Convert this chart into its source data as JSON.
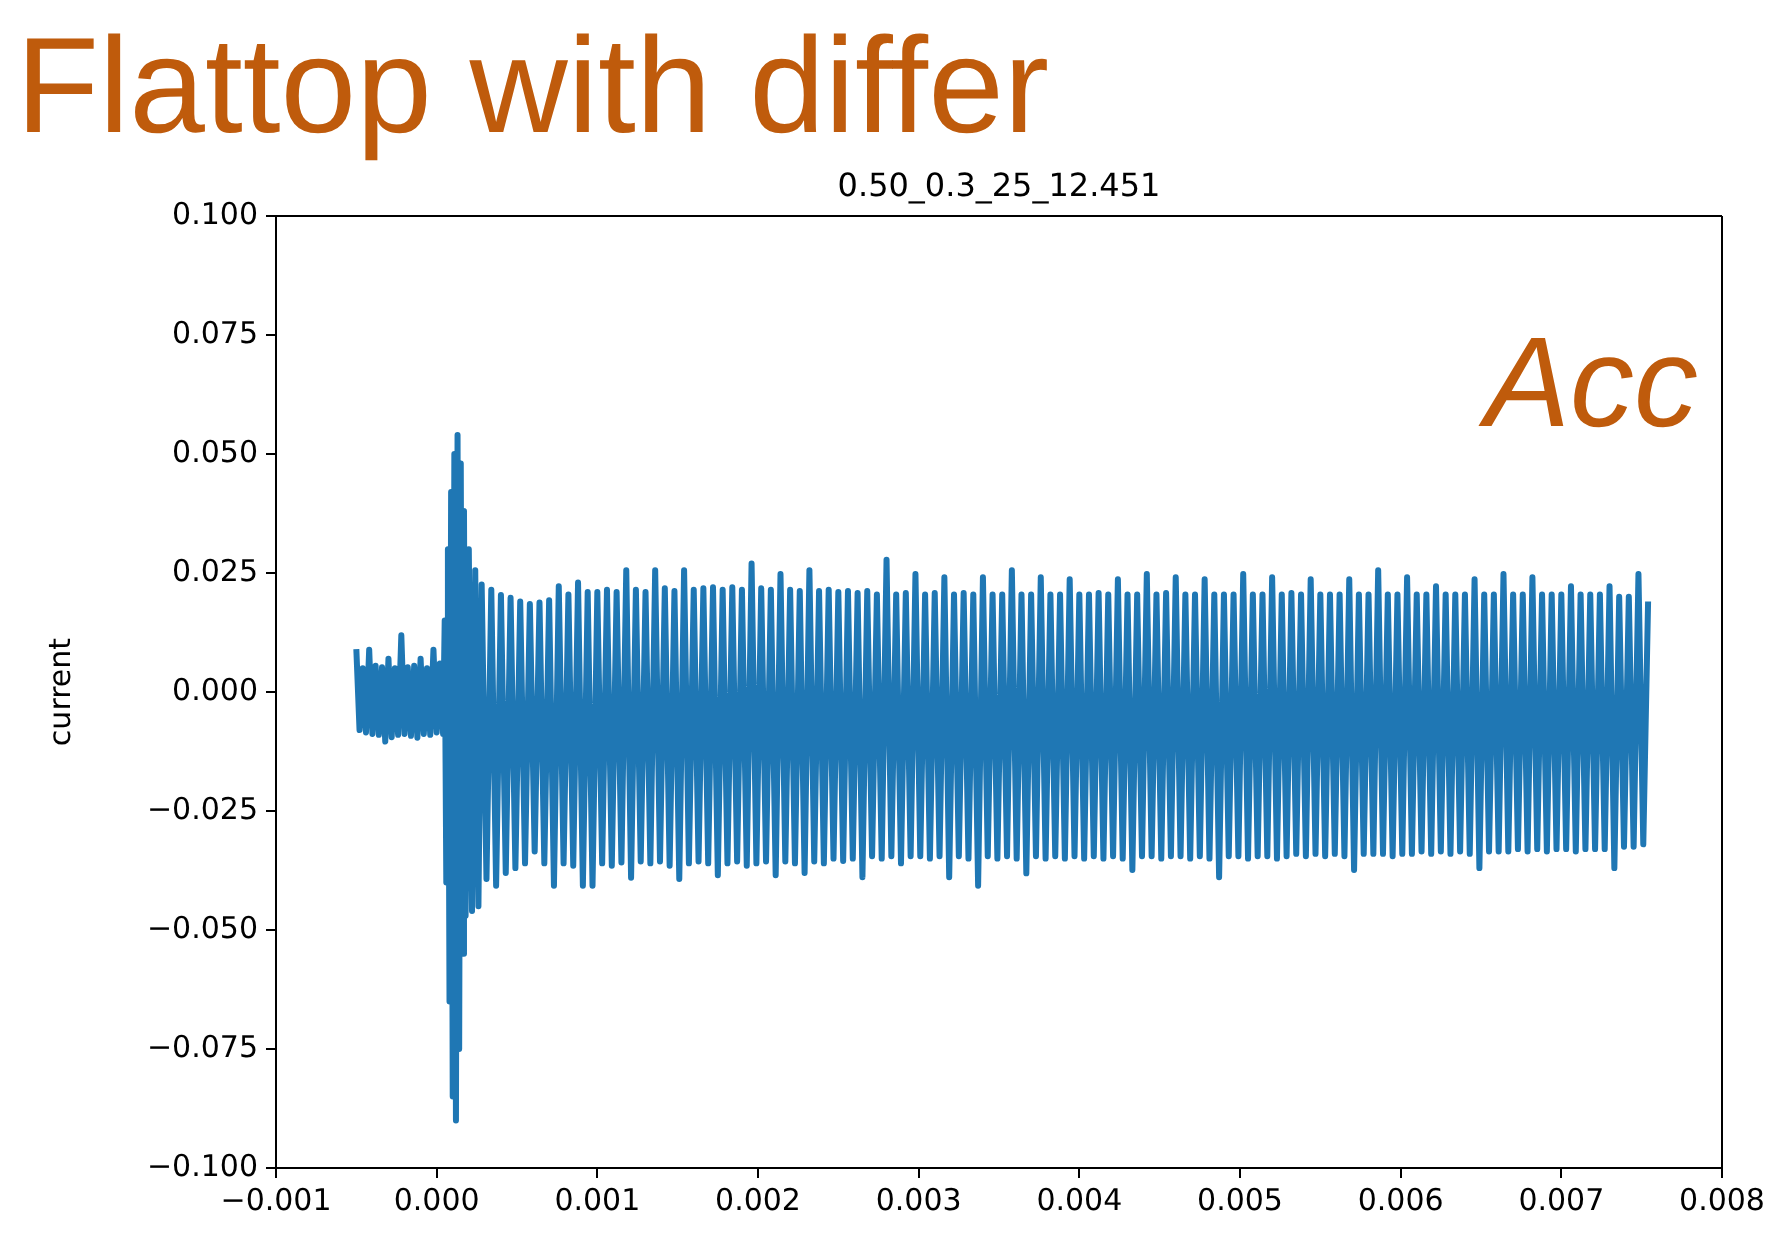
{
  "chart_data": {
    "type": "line",
    "title": "0.50_0.3_25_12.451",
    "ylabel": "current",
    "annotations": [
      "Flattop with differ",
      "Acc"
    ],
    "color": "#1f77b4",
    "xlim": [
      -0.001,
      0.008
    ],
    "xticks": [
      {
        "value": -0.001,
        "label": "−0.001"
      },
      {
        "value": 0,
        "label": "0.000"
      },
      {
        "value": 0.001,
        "label": "0.001"
      },
      {
        "value": 0.002,
        "label": "0.002"
      },
      {
        "value": 0.003,
        "label": "0.003"
      },
      {
        "value": 0.004,
        "label": "0.004"
      },
      {
        "value": 0.005,
        "label": "0.005"
      },
      {
        "value": 0.006,
        "label": "0.006"
      },
      {
        "value": 0.007,
        "label": "0.007"
      },
      {
        "value": 0.008,
        "label": "0.008"
      }
    ],
    "ylim": [
      -0.1,
      0.1
    ],
    "yticks": [
      {
        "value": -0.1,
        "label": "−0.100"
      },
      {
        "value": -0.075,
        "label": "−0.075"
      },
      {
        "value": -0.05,
        "label": "−0.050"
      },
      {
        "value": -0.025,
        "label": "−0.025"
      },
      {
        "value": 0,
        "label": "0.000"
      },
      {
        "value": 0.025,
        "label": "0.025"
      },
      {
        "value": 0.05,
        "label": "0.050"
      },
      {
        "value": 0.075,
        "label": "0.075"
      },
      {
        "value": 0.1,
        "label": "0.100"
      }
    ],
    "x": [
      -0.0005,
      -0.00048,
      -0.00046,
      -0.00044,
      -0.00042,
      -0.0004,
      -0.00038,
      -0.00036,
      -0.00034,
      -0.00032,
      -0.0003,
      -0.00028,
      -0.00026,
      -0.00024,
      -0.00022,
      -0.0002,
      -0.00018,
      -0.00016,
      -0.00014,
      -0.00012,
      -0.0001,
      -8e-05,
      -6e-05,
      -4e-05,
      -2e-05,
      0,
      2e-05,
      4e-05,
      5e-05,
      6e-05,
      7e-05,
      8e-05,
      9e-05,
      0.0001,
      0.00011,
      0.00012,
      0.00013,
      0.00014,
      0.00015,
      0.00016,
      0.00017,
      0.00018,
      0.0002,
      0.00022,
      0.00024,
      0.00026,
      0.00028,
      0.00031,
      0.00034,
      0.00037,
      0.0004,
      0.00043,
      0.00046,
      0.00049,
      0.00052,
      0.00055,
      0.00058,
      0.00061,
      0.00064,
      0.00067,
      0.0007,
      0.00073,
      0.00076,
      0.00079,
      0.00082,
      0.00085,
      0.00088,
      0.00091,
      0.00094,
      0.00097,
      0.001,
      0.00103,
      0.00106,
      0.00109,
      0.00112,
      0.00115,
      0.00118,
      0.00121,
      0.00124,
      0.00127,
      0.0013,
      0.00133,
      0.00136,
      0.00139,
      0.00142,
      0.00145,
      0.00148,
      0.00151,
      0.00154,
      0.00157,
      0.0016,
      0.00163,
      0.00166,
      0.00169,
      0.00172,
      0.00175,
      0.00178,
      0.00181,
      0.00184,
      0.00187,
      0.0019,
      0.00193,
      0.00196,
      0.00199,
      0.00202,
      0.00205,
      0.00208,
      0.00211,
      0.00214,
      0.00217,
      0.0022,
      0.00223,
      0.00226,
      0.00229,
      0.00232,
      0.00235,
      0.00238,
      0.00241,
      0.00244,
      0.00247,
      0.0025,
      0.00253,
      0.00256,
      0.00259,
      0.00262,
      0.00265,
      0.00268,
      0.00271,
      0.00274,
      0.00277,
      0.0028,
      0.00283,
      0.00286,
      0.00289,
      0.00292,
      0.00295,
      0.00298,
      0.00301,
      0.00304,
      0.00307,
      0.0031,
      0.00313,
      0.00316,
      0.00319,
      0.00322,
      0.00325,
      0.00328,
      0.00331,
      0.00334,
      0.00337,
      0.0034,
      0.00343,
      0.00346,
      0.00349,
      0.00352,
      0.00355,
      0.00358,
      0.00361,
      0.00364,
      0.00367,
      0.0037,
      0.00373,
      0.00376,
      0.00379,
      0.00382,
      0.00385,
      0.00388,
      0.00391,
      0.00394,
      0.00397,
      0.004,
      0.00403,
      0.00406,
      0.00409,
      0.00412,
      0.00415,
      0.00418,
      0.00421,
      0.00424,
      0.00427,
      0.0043,
      0.00433,
      0.00436,
      0.00439,
      0.00442,
      0.00445,
      0.00448,
      0.00451,
      0.00454,
      0.00457,
      0.0046,
      0.00463,
      0.00466,
      0.00469,
      0.00472,
      0.00475,
      0.00478,
      0.00481,
      0.00484,
      0.00487,
      0.0049,
      0.00493,
      0.00496,
      0.00499,
      0.00502,
      0.00505,
      0.00508,
      0.00511,
      0.00514,
      0.00517,
      0.0052,
      0.00523,
      0.00526,
      0.00529,
      0.00532,
      0.00535,
      0.00538,
      0.00541,
      0.00544,
      0.00547,
      0.0055,
      0.00553,
      0.00556,
      0.00559,
      0.00562,
      0.00565,
      0.00568,
      0.00571,
      0.00574,
      0.00577,
      0.0058,
      0.00583,
      0.00586,
      0.00589,
      0.00592,
      0.00595,
      0.00598,
      0.00601,
      0.00604,
      0.00607,
      0.0061,
      0.00613,
      0.00616,
      0.00619,
      0.00622,
      0.00625,
      0.00628,
      0.00631,
      0.00634,
      0.00637,
      0.0064,
      0.00643,
      0.00646,
      0.00649,
      0.00652,
      0.00655,
      0.00658,
      0.00661,
      0.00664,
      0.00667,
      0.0067,
      0.00673,
      0.00676,
      0.00679,
      0.00682,
      0.00685,
      0.00688,
      0.00691,
      0.00694,
      0.00697,
      0.007,
      0.00703,
      0.00706,
      0.00709,
      0.00712,
      0.00715,
      0.00718,
      0.00721,
      0.00724,
      0.00727,
      0.0073,
      0.00733,
      0.00736,
      0.00739,
      0.00742,
      0.00745,
      0.00748,
      0.00751,
      0.00754
    ],
    "values": [
      0.009,
      -0.008,
      0.005,
      -0.0085,
      0.0089,
      -0.0088,
      0.0055,
      -0.009,
      0.0052,
      -0.0104,
      0.007,
      -0.0095,
      0.005,
      -0.009,
      0.0119,
      -0.0088,
      0.0052,
      -0.0092,
      0.0055,
      -0.0096,
      0.007,
      -0.0088,
      0.005,
      -0.009,
      0.0089,
      -0.0085,
      0.006,
      -0.0088,
      0.015,
      -0.04,
      0.03,
      -0.065,
      0.042,
      -0.085,
      0.05,
      -0.09,
      0.054,
      -0.075,
      0.048,
      -0.055,
      0.038,
      -0.047,
      0.03,
      -0.046,
      0.0256,
      -0.045,
      0.0226,
      -0.0393,
      0.0215,
      -0.0407,
      0.0204,
      -0.038,
      0.0198,
      -0.037,
      0.019,
      -0.036,
      0.0185,
      -0.0335,
      0.0188,
      -0.036,
      0.0193,
      -0.0407,
      0.0222,
      -0.036,
      0.0205,
      -0.0365,
      0.023,
      -0.0407,
      0.021,
      -0.0407,
      0.021,
      -0.036,
      0.0215,
      -0.0365,
      0.021,
      -0.0358,
      0.0256,
      -0.039,
      0.0215,
      -0.0356,
      0.021,
      -0.036,
      0.0256,
      -0.0356,
      0.0218,
      -0.0365,
      0.0212,
      -0.0393,
      0.0256,
      -0.036,
      0.0215,
      -0.0356,
      0.0218,
      -0.036,
      0.022,
      -0.0385,
      0.0215,
      -0.036,
      0.022,
      -0.0356,
      0.0215,
      -0.0365,
      0.027,
      -0.036,
      0.0218,
      -0.0356,
      0.0215,
      -0.0385,
      0.0248,
      -0.0356,
      0.0215,
      -0.036,
      0.0212,
      -0.038,
      0.0256,
      -0.0356,
      0.0212,
      -0.036,
      0.0215,
      -0.035,
      0.021,
      -0.0355,
      0.0212,
      -0.035,
      0.0208,
      -0.0389,
      0.0212,
      -0.0345,
      0.0205,
      -0.035,
      0.0278,
      -0.0345,
      0.0205,
      -0.036,
      0.0208,
      -0.0345,
      0.0248,
      -0.0345,
      0.0205,
      -0.035,
      0.0208,
      -0.0345,
      0.0241,
      -0.0389,
      0.0205,
      -0.0345,
      0.0208,
      -0.035,
      0.0205,
      -0.0407,
      0.0241,
      -0.0345,
      0.0205,
      -0.035,
      0.0205,
      -0.0345,
      0.0256,
      -0.035,
      0.0205,
      -0.0381,
      0.0205,
      -0.0345,
      0.0241,
      -0.035,
      0.0205,
      -0.0345,
      0.0205,
      -0.035,
      0.0237,
      -0.0345,
      0.0205,
      -0.035,
      0.0205,
      -0.0345,
      0.0208,
      -0.035,
      0.0205,
      -0.0345,
      0.0237,
      -0.035,
      0.0205,
      -0.0374,
      0.0205,
      -0.0345,
      0.0248,
      -0.0345,
      0.0205,
      -0.035,
      0.0208,
      -0.0345,
      0.0241,
      -0.0345,
      0.0205,
      -0.035,
      0.0205,
      -0.0345,
      0.0237,
      -0.035,
      0.0205,
      -0.0389,
      0.0205,
      -0.0345,
      0.0205,
      -0.0345,
      0.0248,
      -0.035,
      0.0205,
      -0.0345,
      0.0205,
      -0.0345,
      0.0241,
      -0.035,
      0.0205,
      -0.0345,
      0.0208,
      -0.034,
      0.0205,
      -0.0345,
      0.0237,
      -0.034,
      0.0205,
      -0.0345,
      0.0205,
      -0.034,
      0.0205,
      -0.0345,
      0.0237,
      -0.0374,
      0.0205,
      -0.034,
      0.0205,
      -0.034,
      0.0256,
      -0.034,
      0.0205,
      -0.0345,
      0.0205,
      -0.034,
      0.0241,
      -0.034,
      0.0205,
      -0.0335,
      0.0205,
      -0.034,
      0.0222,
      -0.0335,
      0.0205,
      -0.034,
      0.0205,
      -0.0335,
      0.0205,
      -0.034,
      0.0237,
      -0.037,
      0.0205,
      -0.0335,
      0.0205,
      -0.0335,
      0.0248,
      -0.0335,
      0.0205,
      -0.033,
      0.0205,
      -0.0335,
      0.0241,
      -0.033,
      0.0205,
      -0.0335,
      0.0205,
      -0.033,
      0.0205,
      -0.033,
      0.0222,
      -0.0335,
      0.0205,
      -0.033,
      0.0205,
      -0.033,
      0.0205,
      -0.033,
      0.0222,
      -0.037,
      0.02,
      -0.0325,
      0.02,
      -0.0325,
      0.0248,
      -0.032,
      0.019
    ]
  }
}
